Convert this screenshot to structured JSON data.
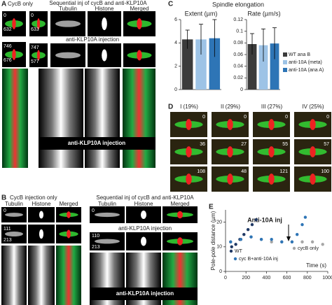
{
  "panel_a": {
    "label": "A",
    "left_title": "CycB only",
    "right_title": "Sequential inj of cycB and anti-KLP10A",
    "columns": [
      "Tubulin",
      "Histone",
      "Merged"
    ],
    "times_left": [
      0,
      632,
      746,
      676
    ],
    "times_right": [
      0,
      633,
      747,
      577
    ],
    "injection_label": "anti-KLP10A  injection",
    "kymo_label": "anti-KLP10A injection"
  },
  "panel_c": {
    "label": "C",
    "title": "Spindle elongation"
  },
  "panel_d": {
    "label": "D",
    "classes": [
      {
        "name": "I (19%)",
        "times": [
          0,
          36,
          108
        ]
      },
      {
        "name": "II (29%)",
        "times": [
          0,
          27,
          48
        ]
      },
      {
        "name": "III (27%)",
        "times": [
          0,
          55,
          121
        ]
      },
      {
        "name": "IV (25%)",
        "times": [
          0,
          57,
          100
        ]
      }
    ]
  },
  "panel_b": {
    "label": "B",
    "left_title": "CycB injection only",
    "left_columns": [
      "Tubulin",
      "Histone",
      "Merged"
    ],
    "left_times": [
      0,
      111,
      213
    ],
    "right_title": "Sequential inj of cycB and anti-KLP10A",
    "right_columns": [
      "Tubulin",
      "Histone",
      "Merged"
    ],
    "right_times": [
      0,
      110,
      213
    ],
    "injection_label": "anti-KLP10A  injection",
    "kymo_label": "anti-KLP10A injection"
  },
  "panel_e": {
    "label": "E"
  },
  "chart_data": [
    {
      "type": "bar",
      "title": "Extent (µm)",
      "ylim": [
        0,
        6
      ],
      "yticks": [
        0,
        2,
        4,
        6
      ],
      "series": [
        {
          "color": "#3b3b3b",
          "values": [
            4.3
          ],
          "errors": [
            0.8
          ]
        },
        {
          "color": "#9dc3e6",
          "values": [
            4.3
          ],
          "errors": [
            1.3
          ]
        },
        {
          "color": "#2e75b6",
          "values": [
            4.4
          ],
          "errors": [
            1.6
          ]
        }
      ]
    },
    {
      "type": "bar",
      "title": "Rate (µm/s)",
      "ylim": [
        0,
        0.12
      ],
      "yticks": [
        0,
        0.02,
        0.04,
        0.06,
        0.08,
        0.1,
        0.12
      ],
      "series": [
        {
          "name": "WT ana B",
          "color": "#3b3b3b",
          "values": [
            0.078
          ],
          "errors": [
            0.018
          ]
        },
        {
          "name": "anti-10A (meta)",
          "color": "#9dc3e6",
          "values": [
            0.076
          ],
          "errors": [
            0.028
          ]
        },
        {
          "name": "anti-10A (ana A)",
          "color": "#2e75b6",
          "values": [
            0.079
          ],
          "errors": [
            0.027
          ]
        }
      ]
    },
    {
      "type": "scatter",
      "ylabel": "Pole-pole distance (µm)",
      "xlabel": "Time (s)",
      "annotation": "Anti-10A inj",
      "xlim": [
        0,
        1000
      ],
      "xticks": [
        0,
        200,
        400,
        600,
        800,
        1000
      ],
      "ylim": [
        0,
        25
      ],
      "yticks": [
        0,
        10,
        20
      ],
      "series": [
        {
          "name": "WT",
          "color": "#1f3864",
          "x": [
            60,
            100,
            140,
            180,
            220,
            260,
            300
          ],
          "values": [
            10,
            11,
            13,
            15,
            17,
            19,
            21
          ]
        },
        {
          "name": "cycB only",
          "color": "#a6a6a6",
          "x": [
            50,
            150,
            250,
            350,
            450,
            550,
            650,
            750,
            850,
            950
          ],
          "values": [
            12,
            13,
            14,
            13,
            12,
            12,
            12,
            12,
            12,
            11
          ]
        },
        {
          "name": "cyc B+anti-10A inj",
          "color": "#2e75b6",
          "x": [
            50,
            150,
            250,
            350,
            450,
            550,
            650,
            700,
            750,
            780
          ],
          "values": [
            12,
            13,
            14,
            13,
            13,
            12,
            12,
            15,
            19,
            22
          ]
        }
      ]
    }
  ]
}
